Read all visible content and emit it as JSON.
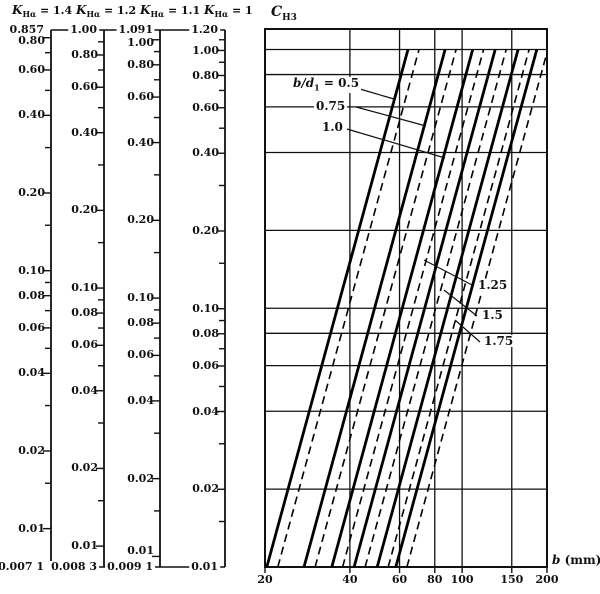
{
  "scales": [
    {
      "symbol": "K",
      "subscript": "Hα",
      "eq_value": " = 1.4",
      "top_label": "0.857",
      "top_value": 0.857,
      "bottom_label": "0.007 1",
      "bottom_value": 0.0071,
      "extra_labeled_ticks": []
    },
    {
      "symbol": "K",
      "subscript": "Hα",
      "eq_value": " = 1.2",
      "top_label": "1.00",
      "top_value": 1.0,
      "bottom_label": "0.008 3",
      "bottom_value": 0.0083,
      "extra_labeled_ticks": []
    },
    {
      "symbol": "K",
      "subscript": "Hα",
      "eq_value": " = 1.1",
      "top_label": "1.091",
      "top_value": 1.091,
      "bottom_label": "0.009 1",
      "bottom_value": 0.0091,
      "extra_labeled_ticks": [
        "1.00"
      ]
    },
    {
      "symbol": "K",
      "subscript": "Hα",
      "eq_value": " = 1",
      "top_label": "1.20",
      "top_value": 1.2,
      "bottom_label": "0.01",
      "bottom_value": 0.01,
      "extra_labeled_ticks": [
        "1.00"
      ]
    }
  ],
  "common_tick_labels": [
    "0.80",
    "0.60",
    "0.40",
    "0.20",
    "0.10",
    "0.08",
    "0.06",
    "0.04",
    "0.02",
    "0.01"
  ],
  "minor_tick_values": [
    1.1,
    0.9,
    0.7,
    0.5,
    0.3,
    0.15,
    0.09,
    0.07,
    0.05,
    0.03,
    0.015
  ],
  "chart": {
    "y_label_symbol": "C",
    "y_label_sub": "H3",
    "x_label_symbol": "b",
    "x_label_unit": " (mm)",
    "y_gridline_values": [
      1.0,
      0.8,
      0.6,
      0.4,
      0.2,
      0.1,
      0.08,
      0.06,
      0.04,
      0.02
    ],
    "x_gridline_values": [
      40,
      60,
      80,
      100,
      150
    ],
    "x_ticks": [
      {
        "label": "20",
        "value": 20
      },
      {
        "label": "40",
        "value": 40
      },
      {
        "label": "60",
        "value": 60
      },
      {
        "label": "80",
        "value": 80
      },
      {
        "label": "100",
        "value": 100
      },
      {
        "label": "150",
        "value": 150
      },
      {
        "label": "200",
        "value": 200
      }
    ]
  },
  "annotations": [
    {
      "lead": "b/d",
      "lead_sub": "1",
      "label": " = 0.5",
      "ratio": "0.5"
    },
    {
      "label": "0.75",
      "ratio": "0.75"
    },
    {
      "label": "1.0",
      "ratio": "1.0"
    },
    {
      "label": "1.25",
      "ratio": "1.25"
    },
    {
      "label": "1.5",
      "ratio": "1.5"
    },
    {
      "label": "1.75",
      "ratio": "1.75"
    }
  ],
  "chart_data": {
    "type": "line",
    "title": "",
    "xlabel": "b (mm)",
    "ylabel": "C_H3",
    "x_scale": "log",
    "y_scale": "log",
    "xlim": [
      20,
      200
    ],
    "ylim": [
      0.01,
      1.2
    ],
    "grid": true,
    "x_tick_labels": [
      "20",
      "40",
      "60",
      "80",
      "100",
      "150",
      "200"
    ],
    "y_tick_values": [
      1.2,
      1.0,
      0.8,
      0.6,
      0.4,
      0.2,
      0.1,
      0.08,
      0.06,
      0.04,
      0.02,
      0.01
    ],
    "note": "Six b/d1 ratio lines, each as a solid and a slightly offset dashed line; straight on log-log axes with slope 4 (C_H3 proportional to b^4), spanning C_H3 = 0.01 to 1.0. Left of chart: four logarithmic conversion scales for K_Ha = 1.4, 1.2, 1.1, 1 sharing tick rows 0.80-0.01 with endpoints 0.857/0.007 1, 1.00/0.008 3, 1.091/0.009 1, 1.20/0.01.",
    "series": [
      {
        "name": "b/d1 = 0.5",
        "style": "solid",
        "points": [
          [
            20.3,
            0.01
          ],
          [
            64.3,
            1.0
          ]
        ]
      },
      {
        "name": "b/d1 = 0.5",
        "style": "dashed",
        "points": [
          [
            22.2,
            0.01
          ],
          [
            70.3,
            1.0
          ]
        ]
      },
      {
        "name": "b/d1 = 0.75",
        "style": "solid",
        "points": [
          [
            27.5,
            0.01
          ],
          [
            87.0,
            1.0
          ]
        ]
      },
      {
        "name": "b/d1 = 0.75",
        "style": "dashed",
        "points": [
          [
            30.1,
            0.01
          ],
          [
            95.2,
            1.0
          ]
        ]
      },
      {
        "name": "b/d1 = 1.0",
        "style": "solid",
        "points": [
          [
            34.5,
            0.01
          ],
          [
            109.0,
            1.0
          ]
        ]
      },
      {
        "name": "b/d1 = 1.0",
        "style": "dashed",
        "points": [
          [
            37.7,
            0.01
          ],
          [
            119.2,
            1.0
          ]
        ]
      },
      {
        "name": "b/d1 = 1.25",
        "style": "solid",
        "points": [
          [
            41.4,
            0.01
          ],
          [
            131.0,
            1.0
          ]
        ]
      },
      {
        "name": "b/d1 = 1.25",
        "style": "dashed",
        "points": [
          [
            45.3,
            0.01
          ],
          [
            143.3,
            1.0
          ]
        ]
      },
      {
        "name": "b/d1 = 1.5",
        "style": "solid",
        "points": [
          [
            50.0,
            0.01
          ],
          [
            158.0,
            1.0
          ]
        ]
      },
      {
        "name": "b/d1 = 1.5",
        "style": "dashed",
        "points": [
          [
            54.7,
            0.01
          ],
          [
            172.8,
            1.0
          ]
        ]
      },
      {
        "name": "b/d1 = 1.75",
        "style": "solid",
        "points": [
          [
            58.2,
            0.01
          ],
          [
            184.0,
            1.0
          ]
        ]
      },
      {
        "name": "b/d1 = 1.75",
        "style": "dashed",
        "points": [
          [
            63.7,
            0.01
          ],
          [
            201.3,
            1.0
          ]
        ]
      }
    ]
  }
}
